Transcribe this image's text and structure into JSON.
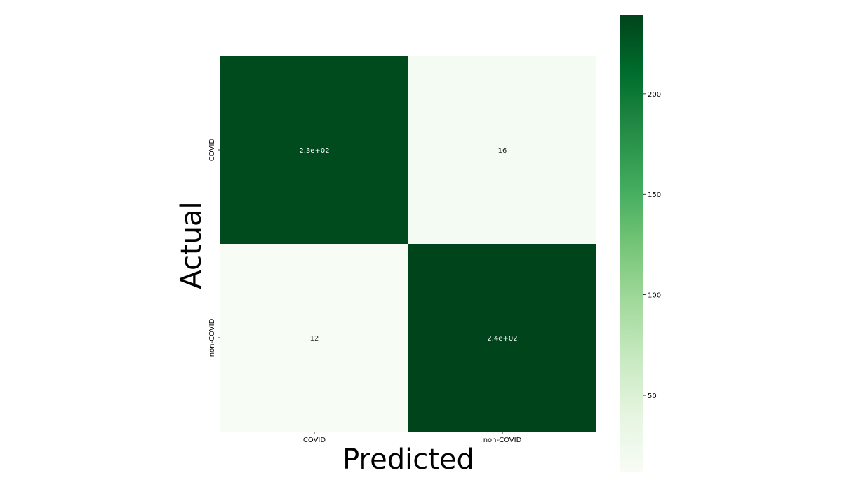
{
  "chart_data": {
    "type": "heatmap",
    "title": "",
    "xlabel": "Predicted",
    "ylabel": "Actual",
    "x_categories": [
      "COVID",
      "non-COVID"
    ],
    "y_categories": [
      "COVID",
      "non-COVID"
    ],
    "values": [
      [
        234,
        16
      ],
      [
        12,
        239
      ]
    ],
    "annotations": [
      [
        "2.3e+02",
        "16"
      ],
      [
        "12",
        "2.4e+02"
      ]
    ],
    "colormap": "Greens",
    "colors": {
      "high": "#00441b",
      "low": "#f7fcf5",
      "high_text": "#ffffff",
      "low_text": "#262626"
    },
    "colorbar": {
      "range": [
        12,
        239
      ],
      "ticks": [
        50,
        100,
        150,
        200
      ],
      "tick_labels": [
        "50",
        "100",
        "150",
        "200"
      ]
    },
    "grid": false,
    "legend": "colorbar-right"
  }
}
